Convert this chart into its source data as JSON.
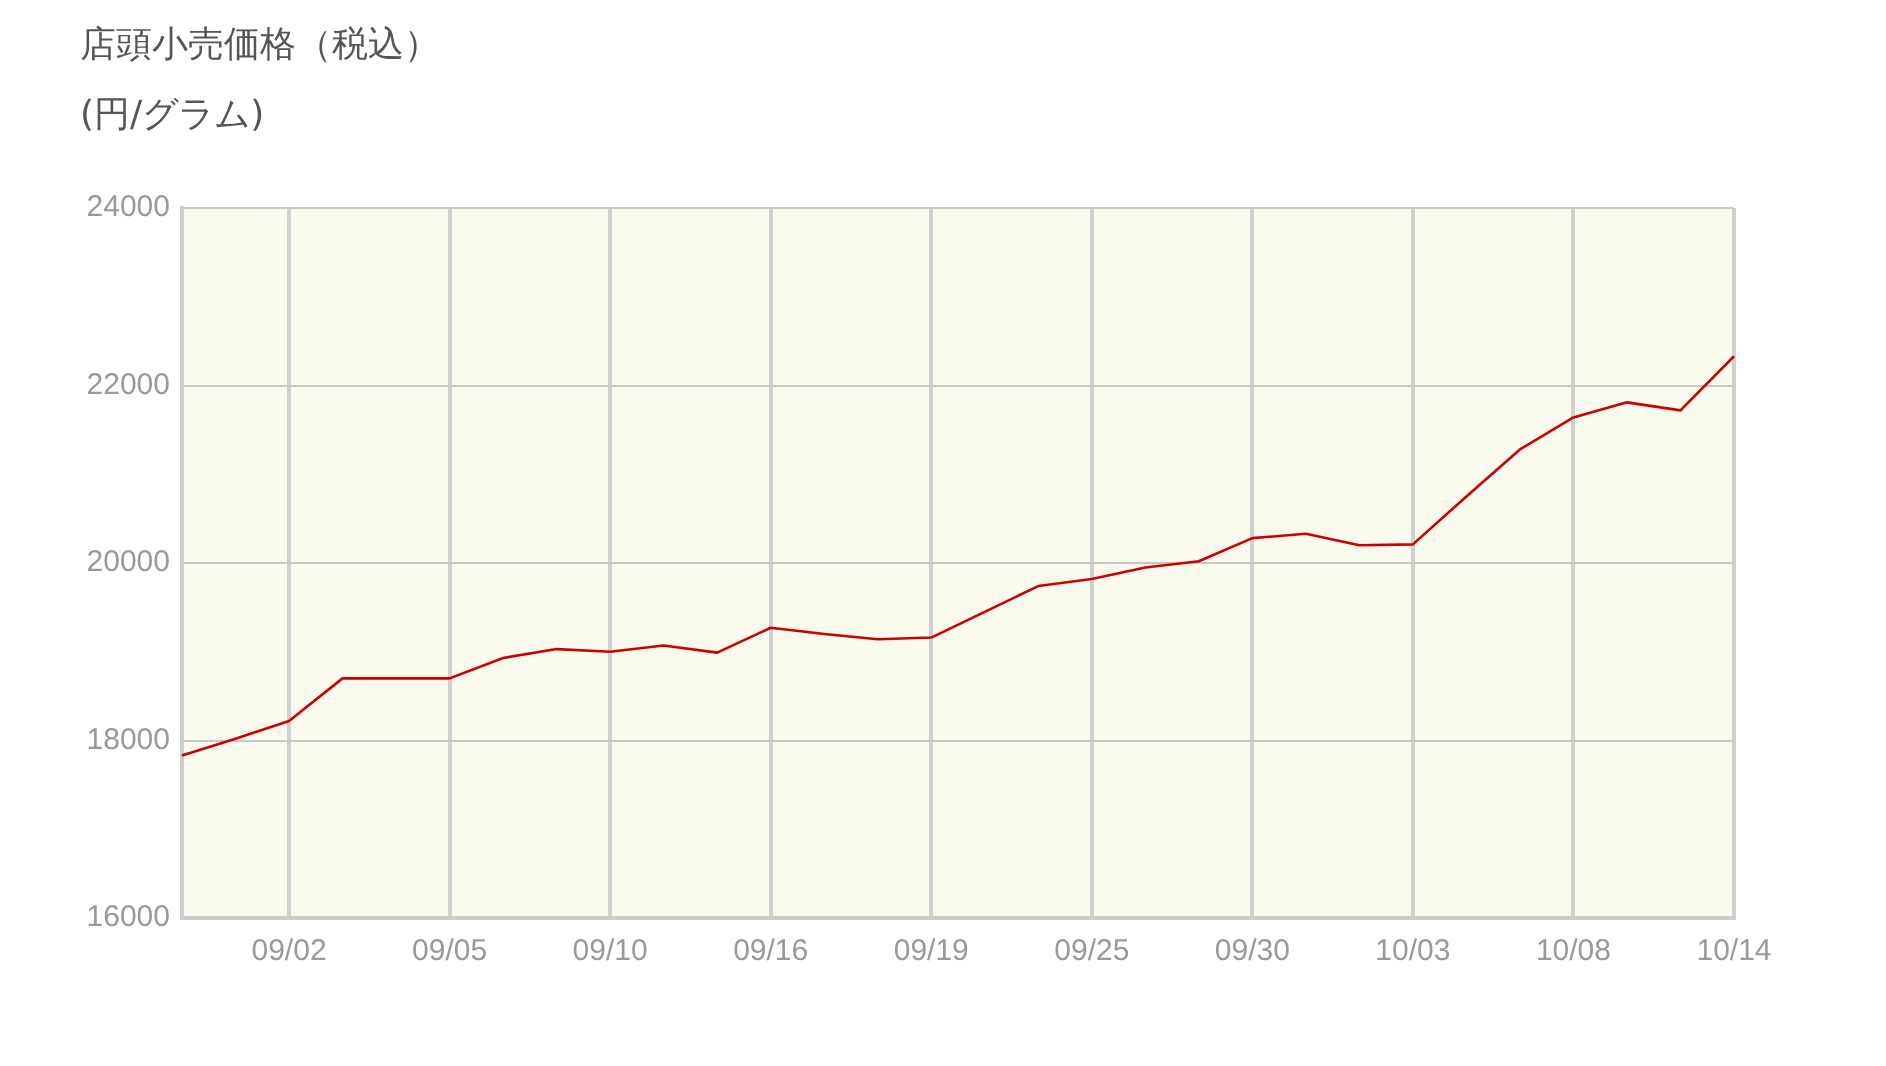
{
  "chart_data": {
    "type": "line",
    "title": "店頭小売価格（税込）",
    "subtitle": "(円/グラム)",
    "categories": [
      null,
      null,
      "09/02",
      null,
      null,
      "09/05",
      null,
      null,
      "09/10",
      null,
      null,
      "09/16",
      null,
      null,
      "09/19",
      null,
      null,
      "09/25",
      null,
      null,
      "09/30",
      null,
      null,
      "10/03",
      null,
      null,
      "10/08",
      null,
      null,
      "10/14"
    ],
    "series": [
      {
        "color": "#cc0000",
        "values": [
          17830,
          18020,
          18220,
          18700,
          18700,
          18700,
          18930,
          19030,
          19000,
          19070,
          18990,
          19270,
          19200,
          19140,
          19160,
          19450,
          19740,
          19820,
          19950,
          20020,
          20280,
          20330,
          20200,
          20210,
          20750,
          21280,
          21640,
          21810,
          21720,
          22330
        ]
      }
    ],
    "ylim": [
      16000,
      24000
    ],
    "yticks": [
      16000,
      18000,
      20000,
      22000,
      24000
    ],
    "grid": true,
    "legend": false,
    "marker": "none",
    "line_style": "solid"
  }
}
